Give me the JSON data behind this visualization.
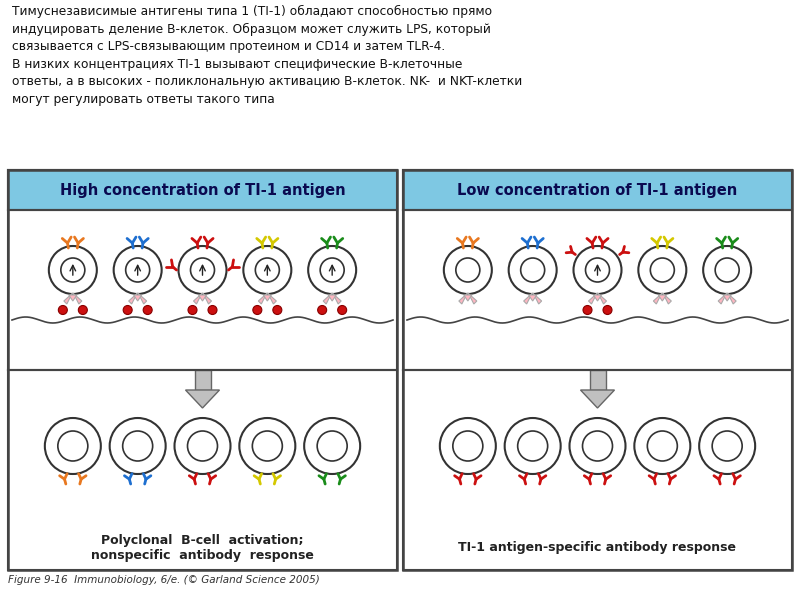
{
  "title_text": "Тимуснезависимые антигены типа 1 (ТI-1) обладают способностью прямо\nиндуцировать деление В-клеток. Образцом может служить LPS, который\nсвязывается с LPS-связывающим протеином и CD14 и затем TLR-4.\nВ низких концентрациях ТI-1 вызывают специфические В-клеточные\nответы, а в высоких - поликлональную активацию В-клеток. NK-  и NKT-клетки\nмогут регулировать ответы такого типа",
  "left_header": "High concentration of TI-1 antigen",
  "right_header": "Low concentration of TI-1 antigen",
  "left_bottom_label": "Polyclonal  B-cell  activation;\nnonspecific  antibody  response",
  "right_bottom_label": "TI-1 antigen-specific antibody response",
  "figure_caption": "Figure 9-16  Immunobiology, 6/e. (© Garland Science 2005)",
  "header_bg": "#7EC8E3",
  "border_color": "#444444",
  "ribbon_color": "#FFB6C1",
  "arrow_fill": "#C0C0C0",
  "colors_left": [
    "#E87820",
    "#1E6FD0",
    "#CC1010",
    "#D4C800",
    "#1A8C1A"
  ],
  "colors_right": [
    "#E87820",
    "#1E6FD0",
    "#CC1010",
    "#D4C800",
    "#1A8C1A"
  ],
  "colors_bot_left": [
    "#E87820",
    "#1E6FD0",
    "#CC1010",
    "#D4C800",
    "#1A8C1A"
  ],
  "red": "#CC1010",
  "lw_cell": 1.5,
  "lw_inner": 1.2
}
